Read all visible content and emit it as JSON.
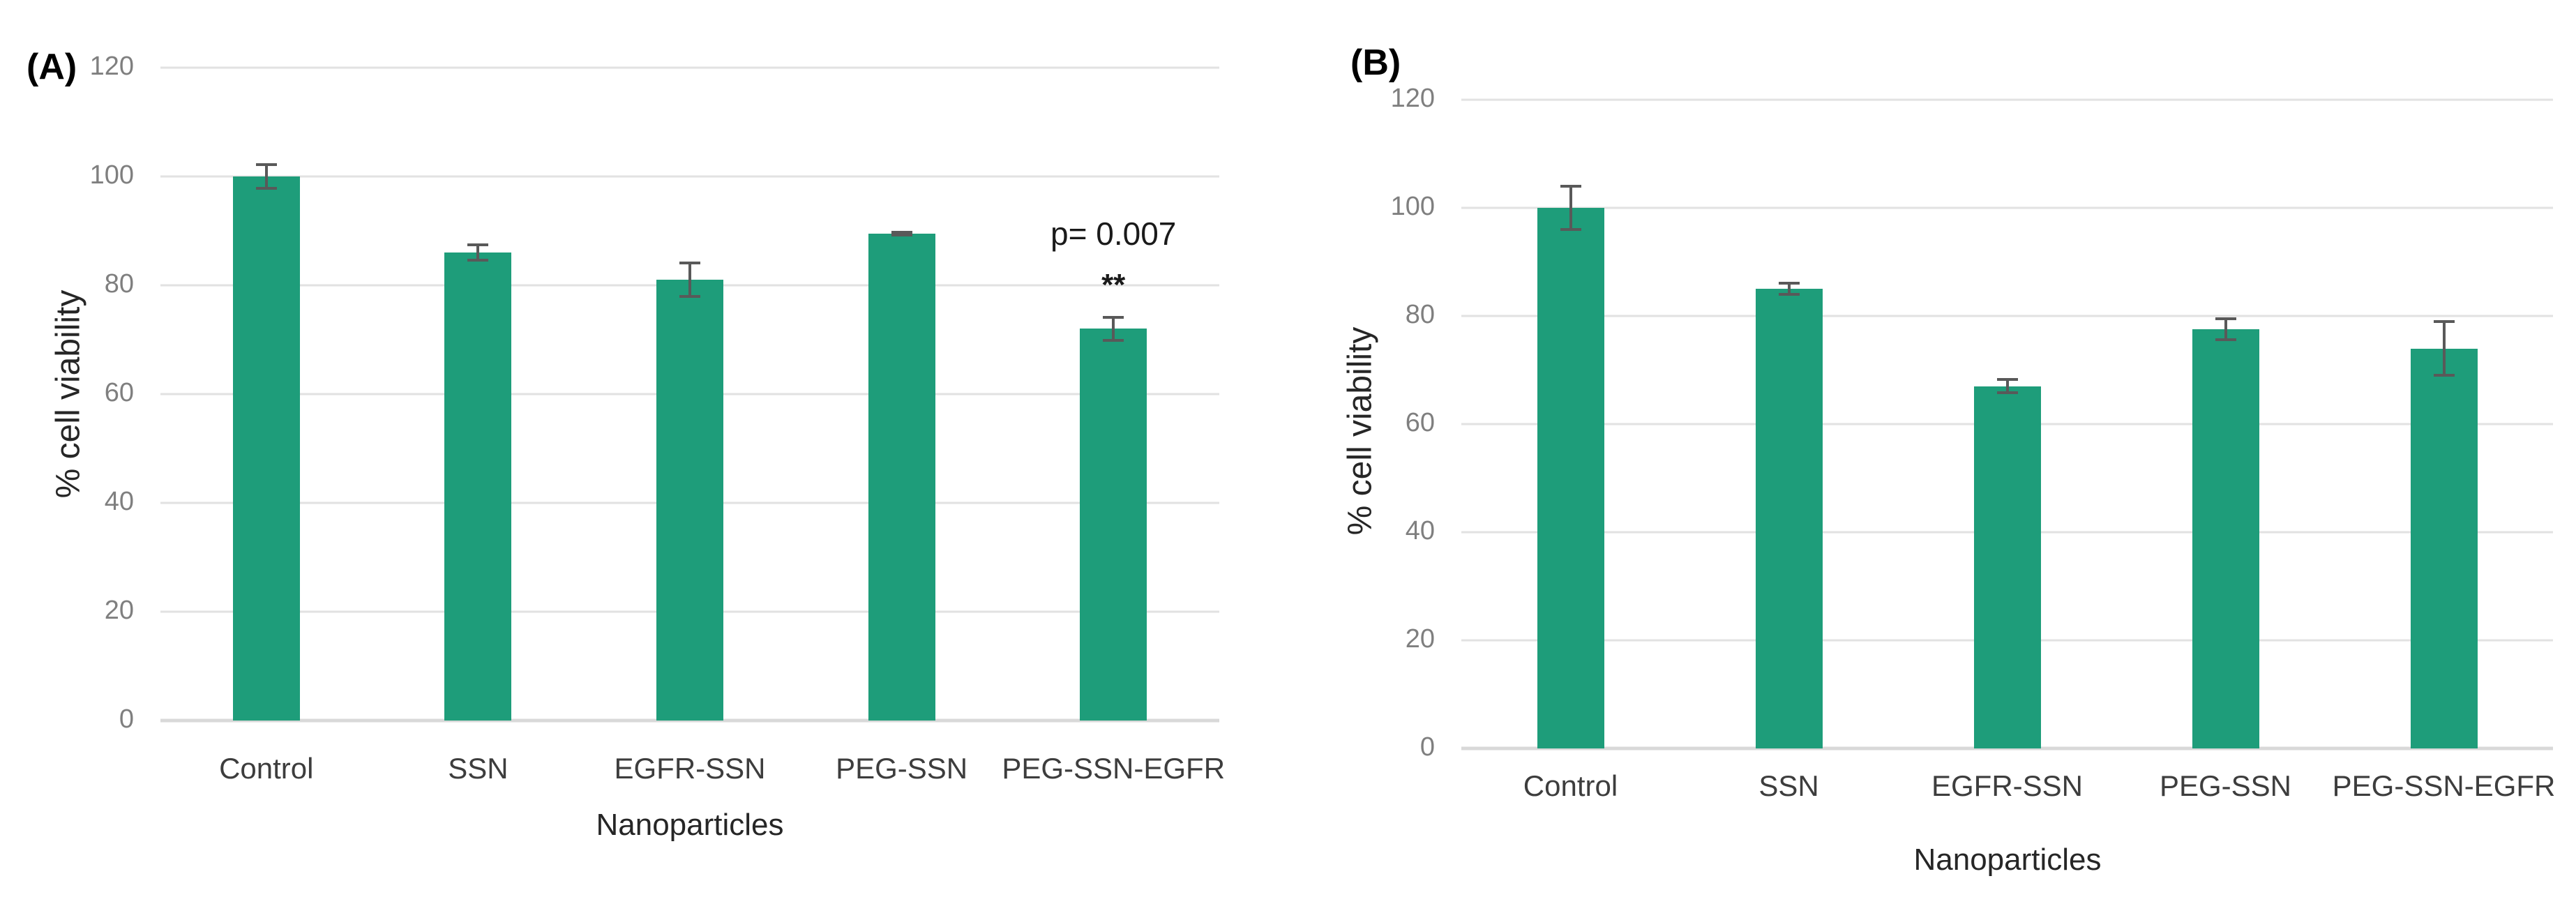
{
  "figure": {
    "background": "#ffffff",
    "panels": [
      {
        "label": "(A)"
      },
      {
        "label": "(B)"
      }
    ]
  },
  "colors": {
    "bar_fill": "#1e9d7a",
    "error_bar": "#595959",
    "gridline": "#e2e2e2",
    "baseline": "#d9d9d9",
    "tick_label": "#7f7f7f",
    "category_label": "#3d3d3d",
    "axis_title": "#262626",
    "panel_label": "#000000",
    "annotation": "#1a1a1a"
  },
  "chart_data": [
    {
      "type": "bar",
      "panel_label": "(A)",
      "title": "",
      "xlabel": "Nanoparticles",
      "ylabel": "% cell viability",
      "ylim": [
        0,
        120
      ],
      "yticks": [
        0,
        20,
        40,
        60,
        80,
        100,
        120
      ],
      "grid": true,
      "legend": false,
      "categories": [
        "Control",
        "SSN",
        "EGFR-SSN",
        "PEG-SSN",
        "PEG-SSN-EGFR"
      ],
      "values": [
        100,
        86,
        81,
        89.5,
        72
      ],
      "errors": [
        2.5,
        1.7,
        3.3,
        0.5,
        2.4
      ],
      "annotations": [
        {
          "text": "p= 0.007",
          "bar_index": 4,
          "at_value": 89.5,
          "bold": false
        },
        {
          "text": "**",
          "bar_index": 4,
          "at_value": 80,
          "bold": true
        }
      ]
    },
    {
      "type": "bar",
      "panel_label": "(B)",
      "title": "",
      "xlabel": "Nanoparticles",
      "ylabel": "% cell viability",
      "ylim": [
        0,
        120
      ],
      "yticks": [
        0,
        20,
        40,
        60,
        80,
        100,
        120
      ],
      "grid": true,
      "legend": false,
      "categories": [
        "Control",
        "SSN",
        "EGFR-SSN",
        "PEG-SSN",
        "PEG-SSN-EGFR"
      ],
      "values": [
        100,
        85,
        67,
        77.5,
        74
      ],
      "errors": [
        4.3,
        1.3,
        1.5,
        2.2,
        5.2
      ],
      "annotations": []
    }
  ]
}
